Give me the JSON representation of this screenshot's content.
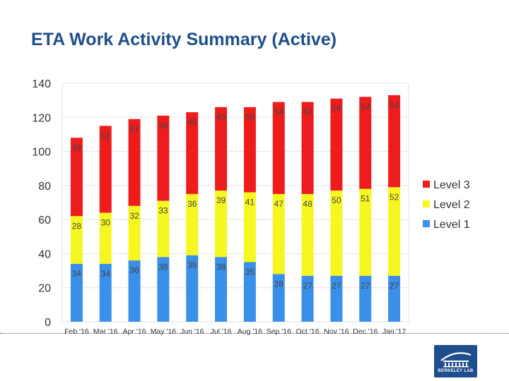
{
  "page": {
    "title": "ETA Work Activity Summary (Active)",
    "logo_text": "BERKELEY LAB"
  },
  "colors": {
    "level1": "#3a8fe8",
    "level2": "#f6f621",
    "level3": "#ee1c1c",
    "title": "#1f4e8c",
    "gridline": "#e3e3e3",
    "text": "#333333",
    "logo": "#1f4e8c"
  },
  "chart_data": {
    "type": "bar",
    "stacked": true,
    "title": "",
    "xlabel": "",
    "ylabel": "",
    "ylim": [
      0,
      140
    ],
    "yticks": [
      0,
      20,
      40,
      60,
      80,
      100,
      120,
      140
    ],
    "grid": true,
    "legend_position": "right",
    "categories": [
      "Feb '16",
      "Mar '16",
      "Apr '16",
      "May '16",
      "Jun '16",
      "Jul '16",
      "Aug '16",
      "Sep '16",
      "Oct '16",
      "Nov '16",
      "Dec '16",
      "Jan '17"
    ],
    "series": [
      {
        "name": "Level 1",
        "color": "#3a8fe8",
        "values": [
          34,
          34,
          36,
          38,
          39,
          38,
          35,
          28,
          27,
          27,
          27,
          27
        ]
      },
      {
        "name": "Level 2",
        "color": "#f6f621",
        "values": [
          28,
          30,
          32,
          33,
          36,
          39,
          41,
          47,
          48,
          50,
          51,
          52
        ]
      },
      {
        "name": "Level 3",
        "color": "#ee1c1c",
        "values": [
          46,
          51,
          51,
          50,
          48,
          49,
          50,
          54,
          54,
          54,
          54,
          54
        ]
      }
    ],
    "legend_order": [
      "Level 3",
      "Level 2",
      "Level 1"
    ]
  }
}
